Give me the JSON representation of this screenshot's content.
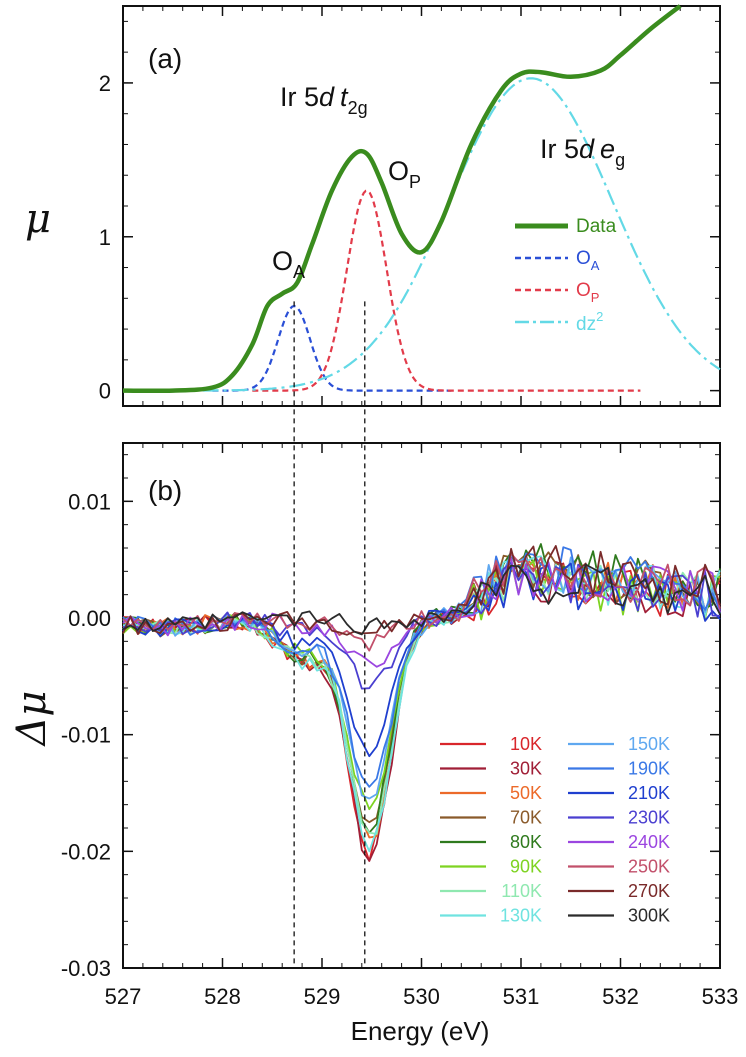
{
  "chart_data": [
    {
      "panel": "a",
      "type": "line",
      "panel_label": "(a)",
      "ylabel": "μ",
      "xlim": [
        527,
        533
      ],
      "ylim": [
        -0.1,
        2.5
      ],
      "yticks": [
        0,
        1,
        2
      ],
      "annotations": {
        "t2g": {
          "base": "Ir 5",
          "d": "d",
          "t": "t",
          "sub": "2g"
        },
        "eg": {
          "base": "Ir 5",
          "d": "d",
          "e": "e",
          "sub": "g"
        },
        "OA": {
          "base": "O",
          "sub": "A"
        },
        "OP": {
          "base": "O",
          "sub": "P"
        }
      },
      "legend": [
        {
          "name": "Data",
          "color": "#3a8c1e",
          "style": "solid"
        },
        {
          "name": "O",
          "sub": "A",
          "color": "#2a4fd6",
          "style": "dashed"
        },
        {
          "name": "O",
          "sub": "P",
          "color": "#e23b4a",
          "style": "dashed"
        },
        {
          "name": "dz",
          "sup": "2",
          "color": "#63d9e6",
          "style": "dashdot"
        }
      ],
      "series": [
        {
          "name": "Data",
          "color": "#3a8c1e",
          "x": [
            527.0,
            527.5,
            527.9,
            528.1,
            528.3,
            528.45,
            528.6,
            528.75,
            528.9,
            529.1,
            529.3,
            529.45,
            529.6,
            529.8,
            530.0,
            530.2,
            530.5,
            530.8,
            531.0,
            531.2,
            531.5,
            531.8,
            532.0,
            532.3,
            532.6
          ],
          "y": [
            0.0,
            0.0,
            0.02,
            0.1,
            0.3,
            0.55,
            0.63,
            0.7,
            0.95,
            1.3,
            1.52,
            1.54,
            1.35,
            1.02,
            0.9,
            1.1,
            1.6,
            1.95,
            2.06,
            2.07,
            2.04,
            2.08,
            2.18,
            2.35,
            2.5
          ]
        },
        {
          "name": "OA",
          "color": "#2a4fd6",
          "center": 528.72,
          "amplitude": 0.55,
          "sigma": 0.16,
          "range": [
            527.9,
            530.3
          ]
        },
        {
          "name": "OP",
          "color": "#e23b4a",
          "center": 529.45,
          "amplitude": 1.3,
          "sigma": 0.2,
          "range": [
            528.3,
            532.2
          ]
        },
        {
          "name": "dz2",
          "color": "#63d9e6",
          "center": 531.1,
          "amplitude": 2.03,
          "sigma": 0.82,
          "range": [
            527.8,
            533.0
          ]
        }
      ]
    },
    {
      "panel": "b",
      "type": "line",
      "panel_label": "(b)",
      "xlabel": "Energy (eV)",
      "ylabel": "Δμ",
      "xlim": [
        527,
        533
      ],
      "ylim": [
        -0.03,
        0.015
      ],
      "xticks": [
        527,
        528,
        529,
        530,
        531,
        532,
        533
      ],
      "yticks": [
        -0.03,
        -0.02,
        -0.01,
        0.0,
        0.01
      ],
      "ytick_labels": [
        "-0.03",
        "-0.02",
        "-0.01",
        "0.00",
        "0.01"
      ],
      "vlines": [
        528.72,
        529.43
      ],
      "series": [
        {
          "name": "10K",
          "color": "#d9262b",
          "min": -0.02
        },
        {
          "name": "30K",
          "color": "#a01e36",
          "min": -0.0205
        },
        {
          "name": "50K",
          "color": "#ec6a2a",
          "min": -0.019
        },
        {
          "name": "70K",
          "color": "#8a5a2a",
          "min": -0.0182
        },
        {
          "name": "80K",
          "color": "#2f7a1e",
          "min": -0.018
        },
        {
          "name": "90K",
          "color": "#7ed321",
          "min": -0.0165
        },
        {
          "name": "110K",
          "color": "#8fe8b0",
          "min": -0.019
        },
        {
          "name": "130K",
          "color": "#6fe3e0",
          "min": -0.0195
        },
        {
          "name": "150K",
          "color": "#5fa8f0",
          "min": -0.0155
        },
        {
          "name": "190K",
          "color": "#3a78e6",
          "min": -0.015
        },
        {
          "name": "210K",
          "color": "#1f3fcf",
          "min": -0.0113
        },
        {
          "name": "230K",
          "color": "#4a3fd0",
          "min": -0.006
        },
        {
          "name": "240K",
          "color": "#9b46e0",
          "min": -0.0042
        },
        {
          "name": "250K",
          "color": "#c2506b",
          "min": -0.0022
        },
        {
          "name": "270K",
          "color": "#7a2a2a",
          "min": -0.0012
        },
        {
          "name": "300K",
          "color": "#2b2b2b",
          "min": -0.0008
        }
      ]
    }
  ]
}
